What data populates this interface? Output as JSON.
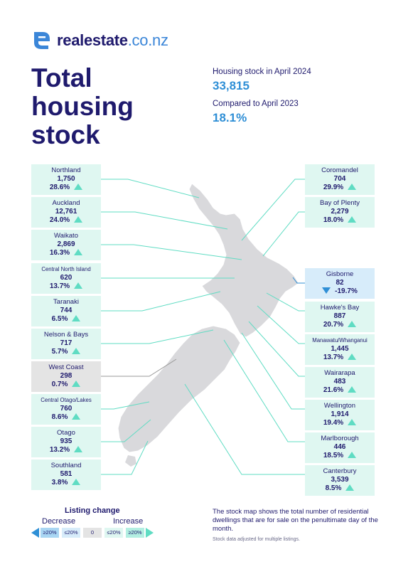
{
  "brand": {
    "name": "realestate",
    "tld": ".co.nz"
  },
  "title_lines": [
    "Total",
    "housing",
    "stock"
  ],
  "summary": {
    "stock_label": "Housing stock in April 2024",
    "stock_value": "33,815",
    "compare_label": "Compared to April 2023",
    "compare_value": "18.1%"
  },
  "regions_left": [
    {
      "name": "Northland",
      "count": "1,750",
      "change": "28.6%",
      "direction": "up",
      "tone": "green"
    },
    {
      "name": "Auckland",
      "count": "12,761",
      "change": "24.0%",
      "direction": "up",
      "tone": "green"
    },
    {
      "name": "Waikato",
      "count": "2,869",
      "change": "16.3%",
      "direction": "up",
      "tone": "green"
    },
    {
      "name": "Central North Island",
      "count": "620",
      "change": "13.7%",
      "direction": "up",
      "tone": "green"
    },
    {
      "name": "Taranaki",
      "count": "744",
      "change": "6.5%",
      "direction": "up",
      "tone": "green"
    },
    {
      "name": "Nelson & Bays",
      "count": "717",
      "change": "5.7%",
      "direction": "up",
      "tone": "green"
    },
    {
      "name": "West Coast",
      "count": "298",
      "change": "0.7%",
      "direction": "up",
      "tone": "grey"
    },
    {
      "name": "Central Otago/Lakes",
      "count": "760",
      "change": "8.6%",
      "direction": "up",
      "tone": "green"
    },
    {
      "name": "Otago",
      "count": "935",
      "change": "13.2%",
      "direction": "up",
      "tone": "green"
    },
    {
      "name": "Southland",
      "count": "581",
      "change": "3.8%",
      "direction": "up",
      "tone": "green"
    }
  ],
  "regions_right": [
    {
      "name": "Coromandel",
      "count": "704",
      "change": "29.9%",
      "direction": "up",
      "tone": "green"
    },
    {
      "name": "Bay of Plenty",
      "count": "2,279",
      "change": "18.0%",
      "direction": "up",
      "tone": "green"
    },
    {
      "name": "Gisborne",
      "count": "82",
      "change": "-19.7%",
      "direction": "down",
      "tone": "blue"
    },
    {
      "name": "Hawke's Bay",
      "count": "887",
      "change": "20.7%",
      "direction": "up",
      "tone": "green"
    },
    {
      "name": "Manawatu/Whanganui",
      "count": "1,445",
      "change": "13.7%",
      "direction": "up",
      "tone": "green"
    },
    {
      "name": "Wairarapa",
      "count": "483",
      "change": "21.6%",
      "direction": "up",
      "tone": "green"
    },
    {
      "name": "Wellington",
      "count": "1,914",
      "change": "19.4%",
      "direction": "up",
      "tone": "green"
    },
    {
      "name": "Marlborough",
      "count": "446",
      "change": "18.5%",
      "direction": "up",
      "tone": "green"
    },
    {
      "name": "Canterbury",
      "count": "3,539",
      "change": "8.5%",
      "direction": "up",
      "tone": "green"
    }
  ],
  "legend": {
    "title": "Listing change",
    "decrease_label": "Decrease",
    "increase_label": "Increase",
    "boxes": [
      "≥20%",
      "≤20%",
      "0",
      "≤20%",
      "≥20%"
    ],
    "box_colors": [
      "#a9d6f3",
      "#d7ecfa",
      "#e4e4e4",
      "#dff7f1",
      "#b3efe2"
    ]
  },
  "notes": {
    "main": "The stock map shows the total number of residential dwellings that are for sale on the penultimate day of the month.",
    "small": "Stock data adjusted for multiple listings."
  },
  "colors": {
    "navy": "#1f1a6d",
    "accent_blue": "#2f8fd6",
    "mint": "#5fdcc3",
    "card_green": "#dff7f1",
    "card_grey": "#e4e4e4",
    "card_blue": "#d7ecfa",
    "map_fill": "#d9d9dc"
  }
}
